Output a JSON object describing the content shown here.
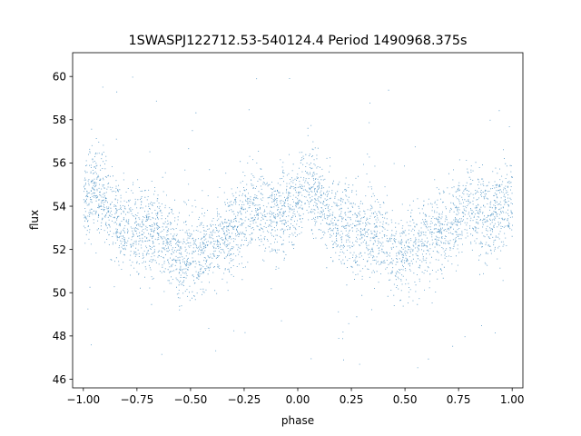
{
  "chart_data": {
    "type": "scatter",
    "title": "1SWASPJ122712.53-540124.4 Period 1490968.375s",
    "xlabel": "phase",
    "ylabel": "flux",
    "xlim": [
      -1.05,
      1.05
    ],
    "ylim": [
      45.6,
      61.1
    ],
    "xticks": [
      -1.0,
      -0.75,
      -0.5,
      -0.25,
      0.0,
      0.25,
      0.5,
      0.75,
      1.0
    ],
    "xtick_labels": [
      "−1.00",
      "−0.75",
      "−0.50",
      "−0.25",
      "0.00",
      "0.25",
      "0.50",
      "0.75",
      "1.00"
    ],
    "yticks": [
      46,
      48,
      50,
      52,
      54,
      56,
      58,
      60
    ],
    "ytick_labels": [
      "46",
      "48",
      "50",
      "52",
      "54",
      "56",
      "58",
      "60"
    ],
    "grid": false,
    "point_color": "#1f77b4",
    "series": [
      {
        "x_range": [
          -1.0,
          1.0
        ],
        "profile": {
          "phase": [
            0.0,
            0.05,
            0.1,
            0.15,
            0.2,
            0.25,
            0.3,
            0.35,
            0.4,
            0.45,
            0.5,
            0.55,
            0.6,
            0.65,
            0.7,
            0.75,
            0.8,
            0.85,
            0.9,
            0.95,
            1.0
          ],
          "flux": [
            54.0,
            55.0,
            54.2,
            53.5,
            53.0,
            53.0,
            52.8,
            52.9,
            52.6,
            51.5,
            51.8,
            52.0,
            52.2,
            52.8,
            52.9,
            53.6,
            53.9,
            53.7,
            53.5,
            54.0,
            54.0
          ]
        },
        "scatter_sigma": 1.0,
        "outlier_range": [
          46.3,
          60.3
        ]
      }
    ]
  }
}
